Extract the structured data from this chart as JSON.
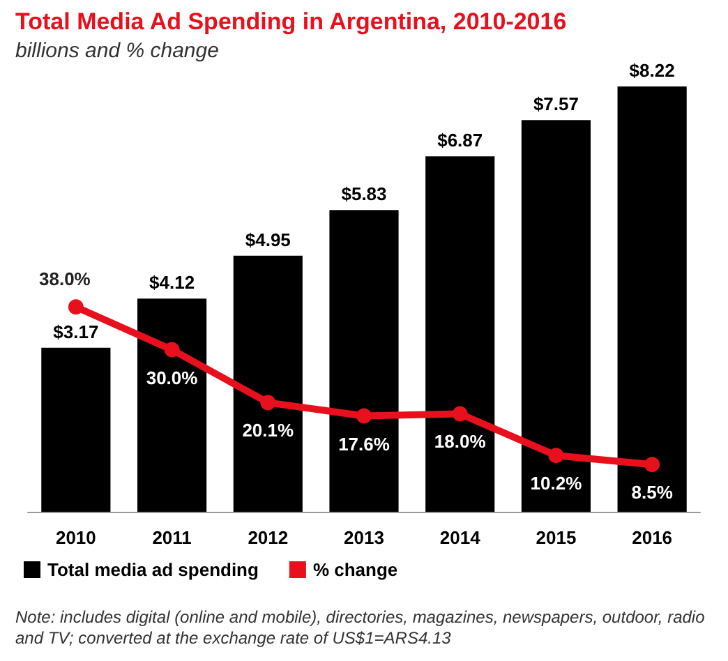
{
  "chart_data": {
    "type": "bar",
    "title": "Total Media Ad Spending in Argentina, 2010-2016",
    "subtitle": "billions and % change",
    "categories": [
      "2010",
      "2011",
      "2012",
      "2013",
      "2014",
      "2015",
      "2016"
    ],
    "series": [
      {
        "name": "Total media ad spending",
        "color": "#000000",
        "values": [
          3.17,
          4.12,
          4.95,
          5.83,
          6.87,
          7.57,
          8.22
        ],
        "value_labels": [
          "$3.17",
          "$4.12",
          "$4.95",
          "$5.83",
          "$6.87",
          "$7.57",
          "$8.22"
        ]
      },
      {
        "name": "% change",
        "type": "line",
        "axis": "y2",
        "color": "#e8101c",
        "values": [
          38.0,
          30.0,
          20.1,
          17.6,
          18.0,
          10.2,
          8.5
        ],
        "value_labels": [
          "38.0%",
          "30.0%",
          "20.1%",
          "17.6%",
          "18.0%",
          "10.2%",
          "8.5%"
        ]
      }
    ],
    "legend": "bottom left",
    "marker": "circle",
    "line_style": "solid",
    "tick_labels": "x",
    "grid": false,
    "annotations": [
      "Note: includes digital (online and mobile), directories, magazines, newspapers, outdoor, radio and TV; converted at the exchange rate of US$1=ARS4.13"
    ]
  }
}
